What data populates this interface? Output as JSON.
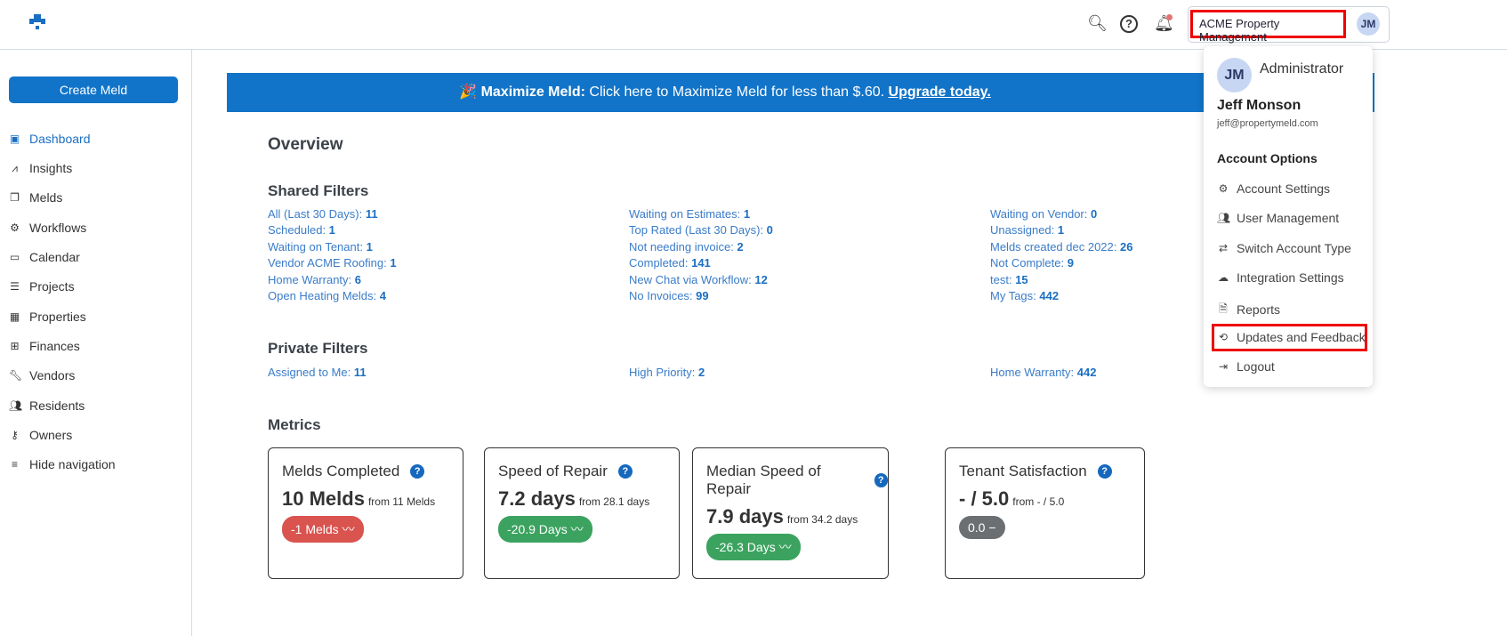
{
  "header": {
    "account_name": "ACME Property Management",
    "avatar_initials": "JM",
    "icons": [
      "search-icon",
      "help-icon",
      "bell-icon"
    ]
  },
  "sidebar": {
    "create_label": "Create Meld",
    "items": [
      {
        "label": "Dashboard",
        "icon": "dashboard-icon"
      },
      {
        "label": "Insights",
        "icon": "insights-icon"
      },
      {
        "label": "Melds",
        "icon": "copy-icon"
      },
      {
        "label": "Workflows",
        "icon": "gears-icon"
      },
      {
        "label": "Calendar",
        "icon": "calendar-icon"
      },
      {
        "label": "Projects",
        "icon": "list-icon"
      },
      {
        "label": "Properties",
        "icon": "building-icon"
      },
      {
        "label": "Finances",
        "icon": "calculator-icon"
      },
      {
        "label": "Vendors",
        "icon": "wrench-icon"
      },
      {
        "label": "Residents",
        "icon": "people-icon"
      },
      {
        "label": "Owners",
        "icon": "key-icon"
      },
      {
        "label": "Hide navigation",
        "icon": "collapse-icon"
      }
    ]
  },
  "banner": {
    "emoji": "🎉",
    "bold": "Maximize Meld:",
    "text": " Click here to Maximize Meld for less than $.60. ",
    "link": "Upgrade today."
  },
  "overview": {
    "title": "Overview",
    "shared_title": "Shared Filters",
    "private_title": "Private Filters",
    "metrics_title": "Metrics",
    "shared": [
      [
        {
          "label": "All (Last 30 Days): ",
          "value": "11"
        },
        {
          "label": "Scheduled: ",
          "value": "1"
        },
        {
          "label": "Waiting on Tenant: ",
          "value": "1"
        },
        {
          "label": "Vendor ACME Roofing: ",
          "value": "1"
        },
        {
          "label": "Home Warranty: ",
          "value": "6"
        },
        {
          "label": "Open Heating Melds: ",
          "value": "4"
        }
      ],
      [
        {
          "label": "Waiting on Estimates: ",
          "value": "1"
        },
        {
          "label": "Top Rated (Last 30 Days): ",
          "value": "0"
        },
        {
          "label": "Not needing invoice: ",
          "value": "2"
        },
        {
          "label": "Completed: ",
          "value": "141"
        },
        {
          "label": "New Chat via Workflow: ",
          "value": "12"
        },
        {
          "label": "No Invoices: ",
          "value": "99"
        }
      ],
      [
        {
          "label": "Waiting on Vendor: ",
          "value": "0"
        },
        {
          "label": "Unassigned: ",
          "value": "1"
        },
        {
          "label": "Melds created dec 2022: ",
          "value": "26"
        },
        {
          "label": "Not Complete: ",
          "value": "9"
        },
        {
          "label": "test: ",
          "value": "15"
        },
        {
          "label": "My Tags: ",
          "value": "442"
        }
      ]
    ],
    "private": [
      {
        "label": "Assigned to Me: ",
        "value": "11"
      },
      {
        "label": "High Priority: ",
        "value": "2"
      },
      {
        "label": "Home Warranty: ",
        "value": "442"
      }
    ]
  },
  "metrics": [
    {
      "title": "Melds Completed",
      "value": "10 Melds",
      "from": "from 11 Melds",
      "change": "-1 Melds",
      "trend": "〰",
      "color": "#d9534f"
    },
    {
      "title": "Speed of Repair",
      "value": "7.2 days",
      "from": "from 28.1 days",
      "change": "-20.9 Days",
      "trend": "〰",
      "color": "#3ba35f"
    },
    {
      "title": "Median Speed of Repair",
      "value": "7.9 days",
      "from": "from 34.2 days",
      "change": "-26.3 Days",
      "trend": "〰",
      "color": "#3ba35f"
    },
    {
      "title": "Tenant Satisfaction",
      "value": "- / 5.0",
      "from": "from - / 5.0",
      "change": "0.0",
      "trend": "−",
      "color": "#6c6f72"
    }
  ],
  "dropdown": {
    "initials": "JM",
    "role": "Administrator",
    "name": "Jeff Monson",
    "email": "jeff@propertymeld.com",
    "options_title": "Account Options",
    "items": [
      {
        "label": "Account Settings",
        "icon": "gear-icon"
      },
      {
        "label": "User Management",
        "icon": "users-icon"
      },
      {
        "label": "Switch Account Type",
        "icon": "switch-icon"
      },
      {
        "label": "Integration Settings",
        "icon": "cloud-icon"
      },
      {
        "label": "Reports",
        "icon": "document-icon"
      },
      {
        "label": "Updates and Feedback",
        "icon": "feedback-icon"
      },
      {
        "label": "Logout",
        "icon": "logout-icon"
      }
    ]
  },
  "colors": {
    "brand": "#1274c8",
    "highlight": "#ee0000"
  }
}
